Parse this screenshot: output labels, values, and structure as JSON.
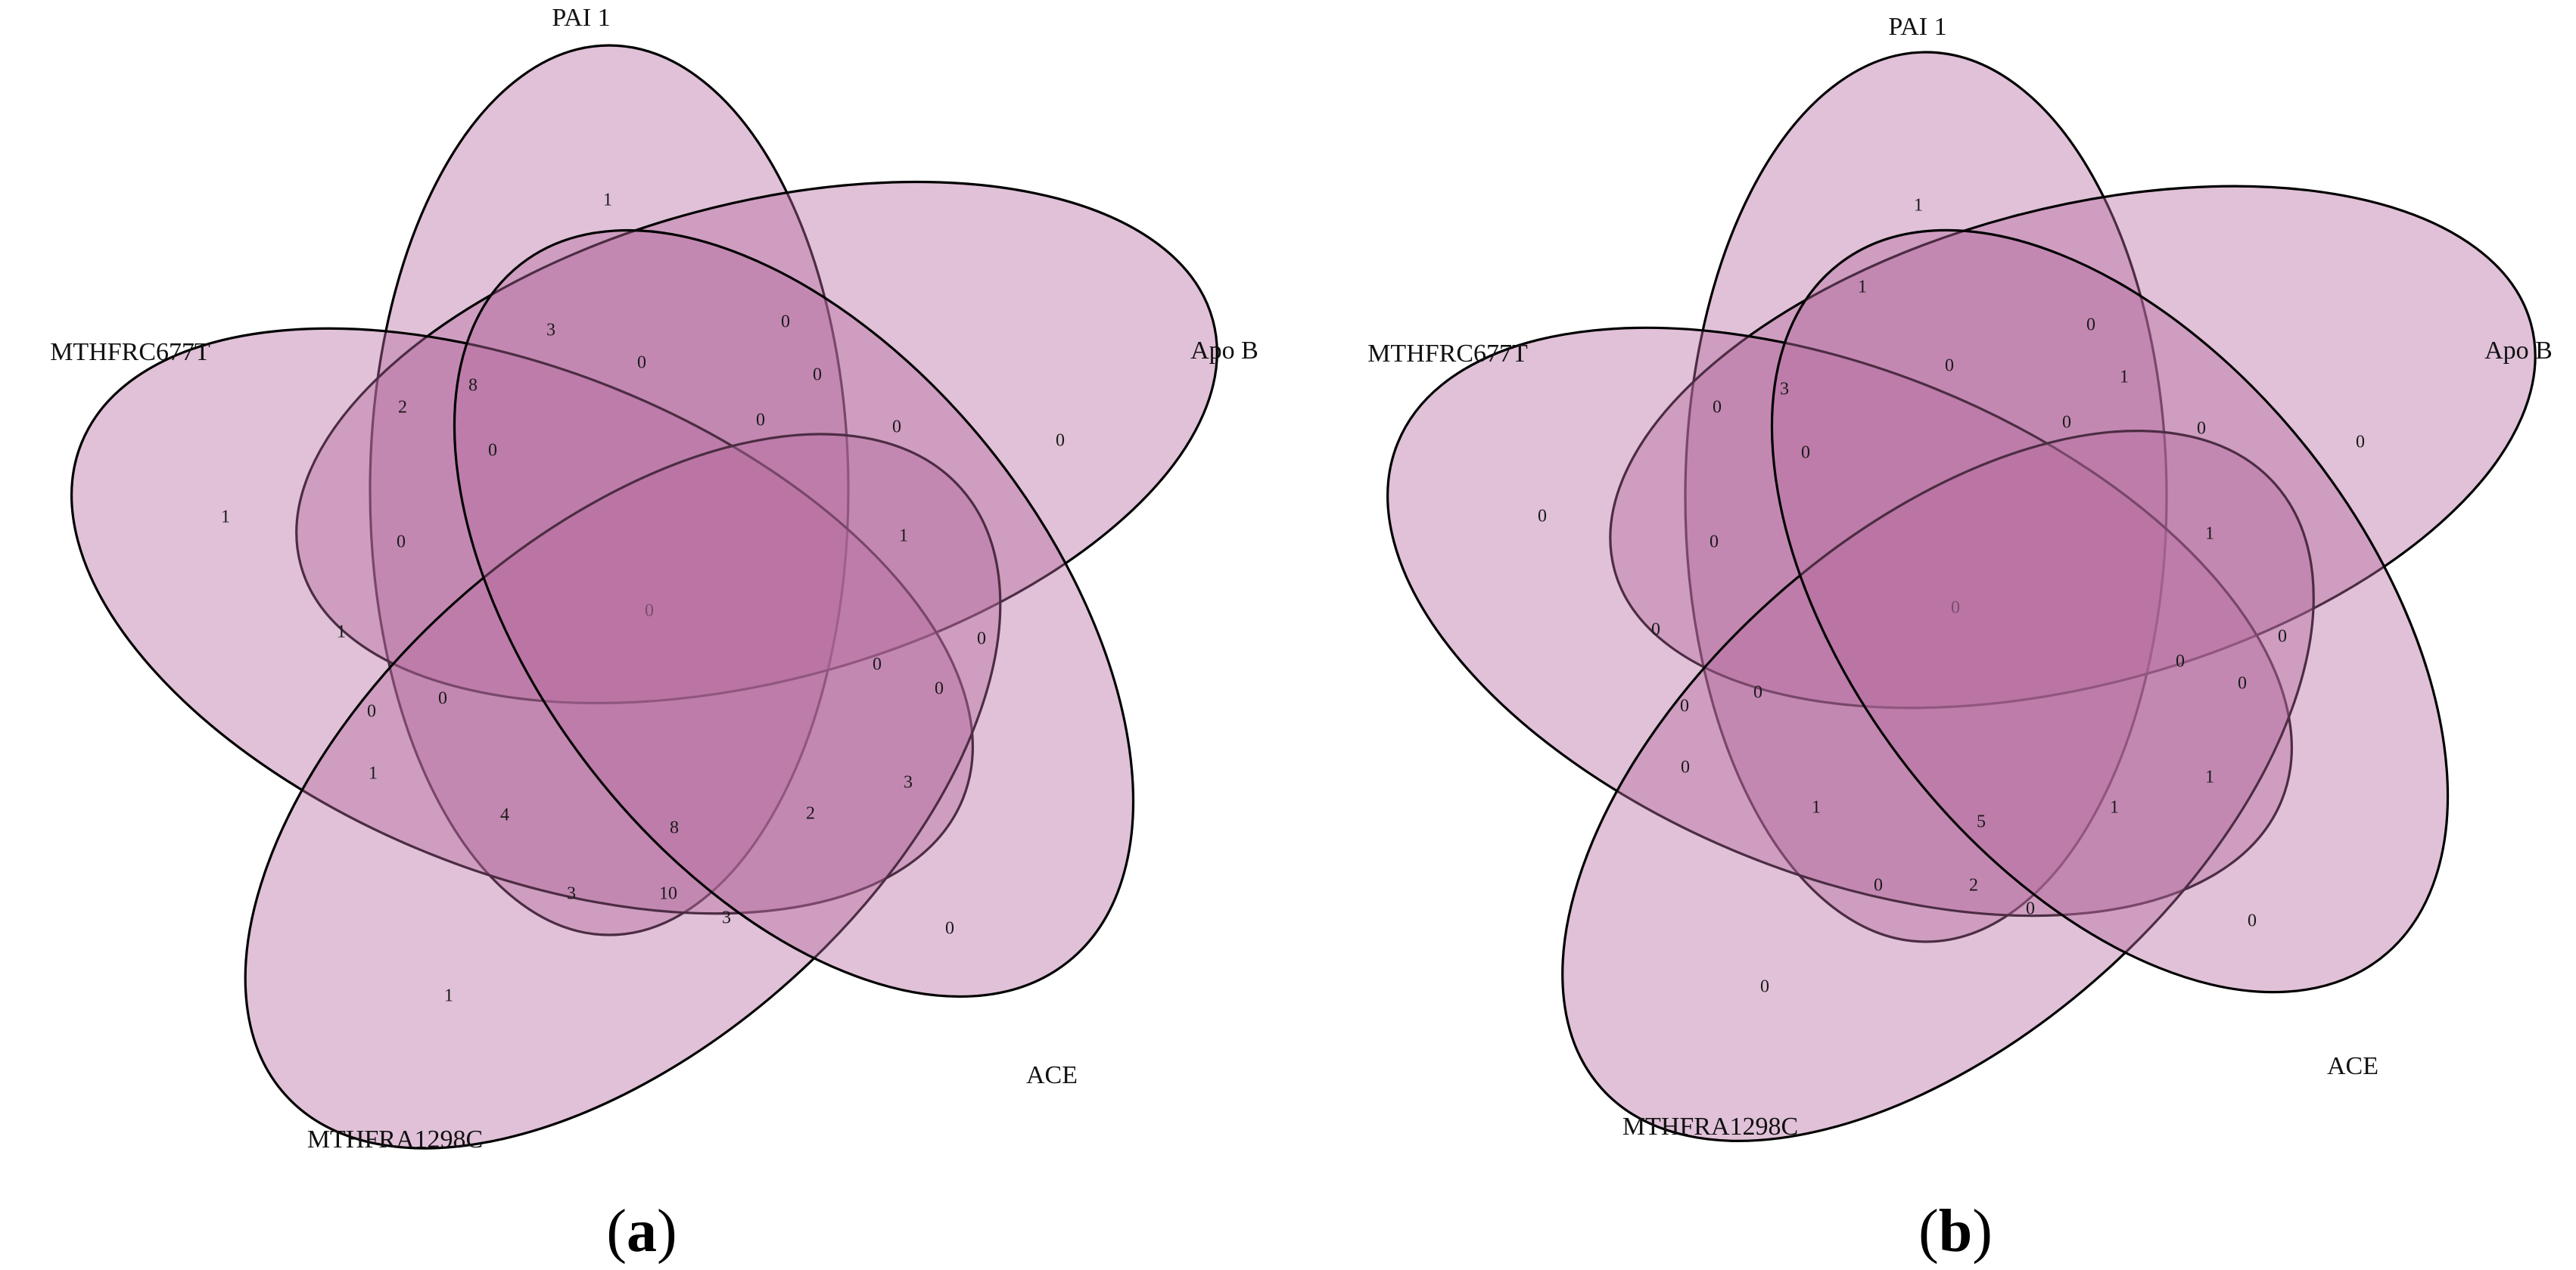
{
  "colors": {
    "ellipse_fill": "#b56ba0",
    "stroke": "#000000",
    "background": "#ffffff"
  },
  "panels": [
    {
      "id": "a",
      "label_open": "(",
      "label_letter": "a",
      "label_close": ")",
      "sets": {
        "pai1": "PAI 1",
        "apob": "Apo B",
        "mthfrc677t": "MTHFRC677T",
        "mthfra1298c": "MTHFRA1298C",
        "ace": "ACE"
      },
      "counts": [
        "1",
        "0",
        "1",
        "1",
        "0",
        "3",
        "0",
        "0",
        "0",
        "8",
        "2",
        "0",
        "0",
        "1",
        "1",
        "0",
        "0",
        "0",
        "0",
        "0",
        "1",
        "4",
        "8",
        "2",
        "3",
        "3",
        "10",
        "3",
        "0"
      ]
    },
    {
      "id": "b",
      "label_open": "(",
      "label_letter": "b",
      "label_close": ")",
      "sets": {
        "pai1": "PAI 1",
        "apob": "Apo B",
        "mthfrc677t": "MTHFRC677T",
        "mthfra1298c": "MTHFRA1298C",
        "ace": "ACE"
      },
      "counts": [
        "1",
        "0",
        "0",
        "0",
        "0",
        "1",
        "0",
        "1",
        "0",
        "3",
        "0",
        "0",
        "0",
        "1",
        "0",
        "0",
        "0",
        "0",
        "0",
        "0",
        "0",
        "1",
        "5",
        "1",
        "1",
        "0",
        "2",
        "0",
        "0"
      ]
    }
  ]
}
